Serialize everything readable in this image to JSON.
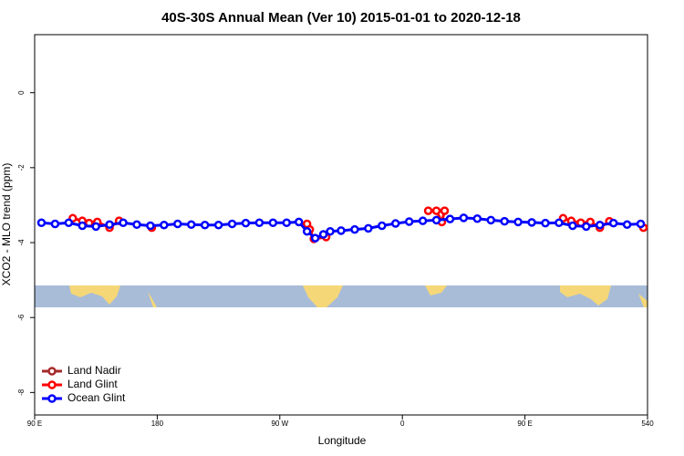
{
  "chart_data": {
    "type": "line",
    "title": "40S-30S Annual Mean (Ver 10)   2015-01-01 to 2020-12-18",
    "x_label": "Longitude",
    "y_label": "XCO2 - MLO trend (ppm)",
    "xlim": [
      90,
      540
    ],
    "ylim": [
      -8.6,
      1.55
    ],
    "xticks": [
      {
        "value": 90,
        "label": "90 E"
      },
      180,
      {
        "value": 270,
        "label": "90 W"
      },
      {
        "value": 360,
        "label": "0"
      },
      {
        "value": 450,
        "label": "90 E"
      },
      540
    ],
    "yticks": [
      0,
      -2,
      -4,
      -6,
      -8
    ],
    "legend": "bottom-left",
    "series": [
      {
        "name": "Land Nadir",
        "color": "#a52a2a",
        "x": [],
        "values": []
      },
      {
        "name": "Land Glint",
        "color": "#ff0000",
        "x": [
          118,
          125,
          130,
          136,
          145,
          152,
          160,
          176,
          230,
          290,
          292,
          295,
          304,
          340,
          379,
          385,
          389,
          391,
          430,
          478,
          484,
          491,
          498,
          505,
          512,
          525,
          537
        ],
        "values": [
          -3.35,
          -3.42,
          -3.48,
          -3.45,
          -3.6,
          -3.42,
          null,
          -3.6,
          null,
          -3.5,
          -3.65,
          -3.9,
          -3.85,
          null,
          -3.15,
          -3.15,
          -3.45,
          -3.15,
          null,
          -3.35,
          -3.42,
          -3.47,
          -3.45,
          -3.6,
          -3.43,
          null,
          -3.6
        ]
      },
      {
        "name": "Ocean Glint",
        "color": "#0000ff",
        "x": [
          95,
          105,
          115,
          125,
          135,
          145,
          155,
          165,
          175,
          185,
          195,
          205,
          215,
          225,
          235,
          245,
          255,
          265,
          275,
          284,
          290,
          296,
          302,
          307,
          315,
          325,
          335,
          345,
          355,
          365,
          375,
          385,
          395,
          405,
          415,
          425,
          435,
          445,
          455,
          465,
          475,
          485,
          495,
          505,
          515,
          525,
          535
        ],
        "values": [
          -3.47,
          -3.5,
          -3.47,
          -3.55,
          -3.57,
          -3.52,
          -3.47,
          -3.52,
          -3.55,
          -3.53,
          -3.5,
          -3.52,
          -3.53,
          -3.53,
          -3.5,
          -3.48,
          -3.47,
          -3.47,
          -3.47,
          -3.45,
          -3.7,
          -3.88,
          -3.78,
          -3.7,
          -3.68,
          -3.65,
          -3.62,
          -3.55,
          -3.49,
          -3.44,
          -3.42,
          -3.4,
          -3.37,
          -3.34,
          -3.36,
          -3.4,
          -3.43,
          -3.45,
          -3.46,
          -3.48,
          -3.47,
          -3.55,
          -3.57,
          -3.53,
          -3.48,
          -3.52,
          -3.5
        ]
      }
    ]
  }
}
